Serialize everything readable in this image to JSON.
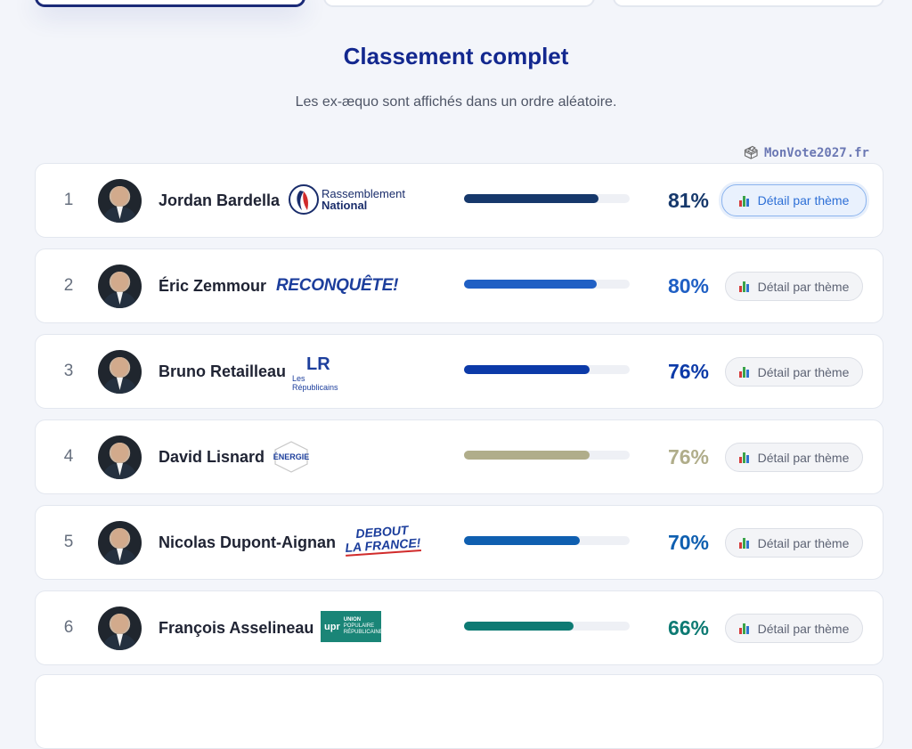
{
  "section": {
    "title": "Classement complet",
    "subtitle": "Les ex-æquo sont affichés dans un ordre aléatoire.",
    "watermark": "MonVote2027.fr"
  },
  "detail_label": "Détail par thème",
  "icons": {
    "watermark": "ballot-box-icon",
    "detail": "bar-chart-icon"
  },
  "rows": [
    {
      "rank": "1",
      "name": "Jordan Bardella",
      "score": "81%",
      "percent": 81,
      "color": "#16386b",
      "logo": "rassemblement-national-logo",
      "logo_text": [
        "Rassemblement",
        "National"
      ]
    },
    {
      "rank": "2",
      "name": "Éric Zemmour",
      "score": "80%",
      "percent": 80,
      "color": "#1f5fc4",
      "logo": "reconquete-logo",
      "logo_text": [
        "RECONQUÊTE!"
      ]
    },
    {
      "rank": "3",
      "name": "Bruno Retailleau",
      "score": "76%",
      "percent": 76,
      "color": "#0c3aa8",
      "logo": "les-republicains-logo",
      "logo_text": [
        "LR",
        "Les",
        "Républicains"
      ]
    },
    {
      "rank": "4",
      "name": "David Lisnard",
      "score": "76%",
      "percent": 76,
      "color": "#b0ad8a",
      "logo": "nouvelle-energie-logo",
      "logo_text": [
        "ÉNERGIE"
      ]
    },
    {
      "rank": "5",
      "name": "Nicolas Dupont-Aignan",
      "score": "70%",
      "percent": 70,
      "color": "#0f5fb0",
      "logo": "debout-la-france-logo",
      "logo_text": [
        "DEBOUT",
        "LA FRANCE!"
      ]
    },
    {
      "rank": "6",
      "name": "François Asselineau",
      "score": "66%",
      "percent": 66,
      "color": "#0d7a73",
      "logo": "upr-logo",
      "logo_text": [
        "upr",
        "UNION",
        "POPULAIRE",
        "RÉPUBLICAINE"
      ]
    }
  ]
}
